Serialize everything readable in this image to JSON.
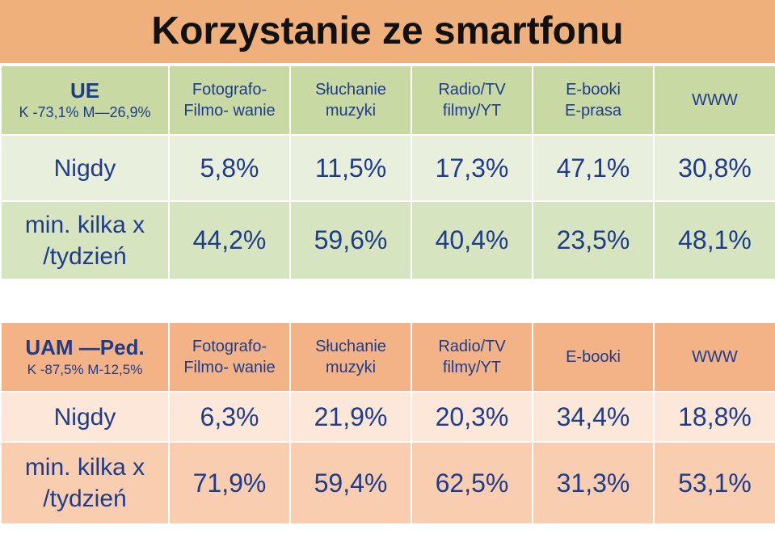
{
  "title": "Korzystanie ze smartfonu",
  "ue": {
    "group": "UE",
    "subtitle": "K -73,1% M—26,9%",
    "headers": [
      "Fotografo-\nFilmo- wanie",
      "Słuchanie\nmuzyki",
      "Radio/TV\nfilmy/YT",
      "E-booki\nE-prasa",
      "WWW"
    ],
    "rows": [
      {
        "label": "Nigdy",
        "values": [
          "5,8%",
          "11,5%",
          "17,3%",
          "47,1%",
          "30,8%"
        ]
      },
      {
        "label": "min. kilka x\n/tydzień",
        "values": [
          "44,2%",
          "59,6%",
          "40,4%",
          "23,5%",
          "48,1%"
        ]
      }
    ]
  },
  "uam": {
    "group": "UAM —Ped.",
    "subtitle": "K -87,5% M-12,5%",
    "headers": [
      "Fotografo-\nFilmo- wanie",
      "Słuchanie\nmuzyki",
      "Radio/TV\nfilmy/YT",
      "E-booki",
      "WWW"
    ],
    "rows": [
      {
        "label": "Nigdy",
        "values": [
          "6,3%",
          "21,9%",
          "20,3%",
          "34,4%",
          "18,8%"
        ]
      },
      {
        "label": "min. kilka x\n/tydzień",
        "values": [
          "71,9%",
          "59,4%",
          "62,5%",
          "31,3%",
          "53,1%"
        ]
      }
    ]
  },
  "colors": {
    "title_bg": "#f0b07c",
    "ue_header_bg": "#c8d9a4",
    "ue_row1_bg": "#e9efdd",
    "ue_row2_bg": "#d6e4bf",
    "uam_header_bg": "#f4b386",
    "uam_row1_bg": "#fde7d8",
    "uam_row2_bg": "#f8cdb0",
    "text_blue": "#1f3c8a"
  }
}
